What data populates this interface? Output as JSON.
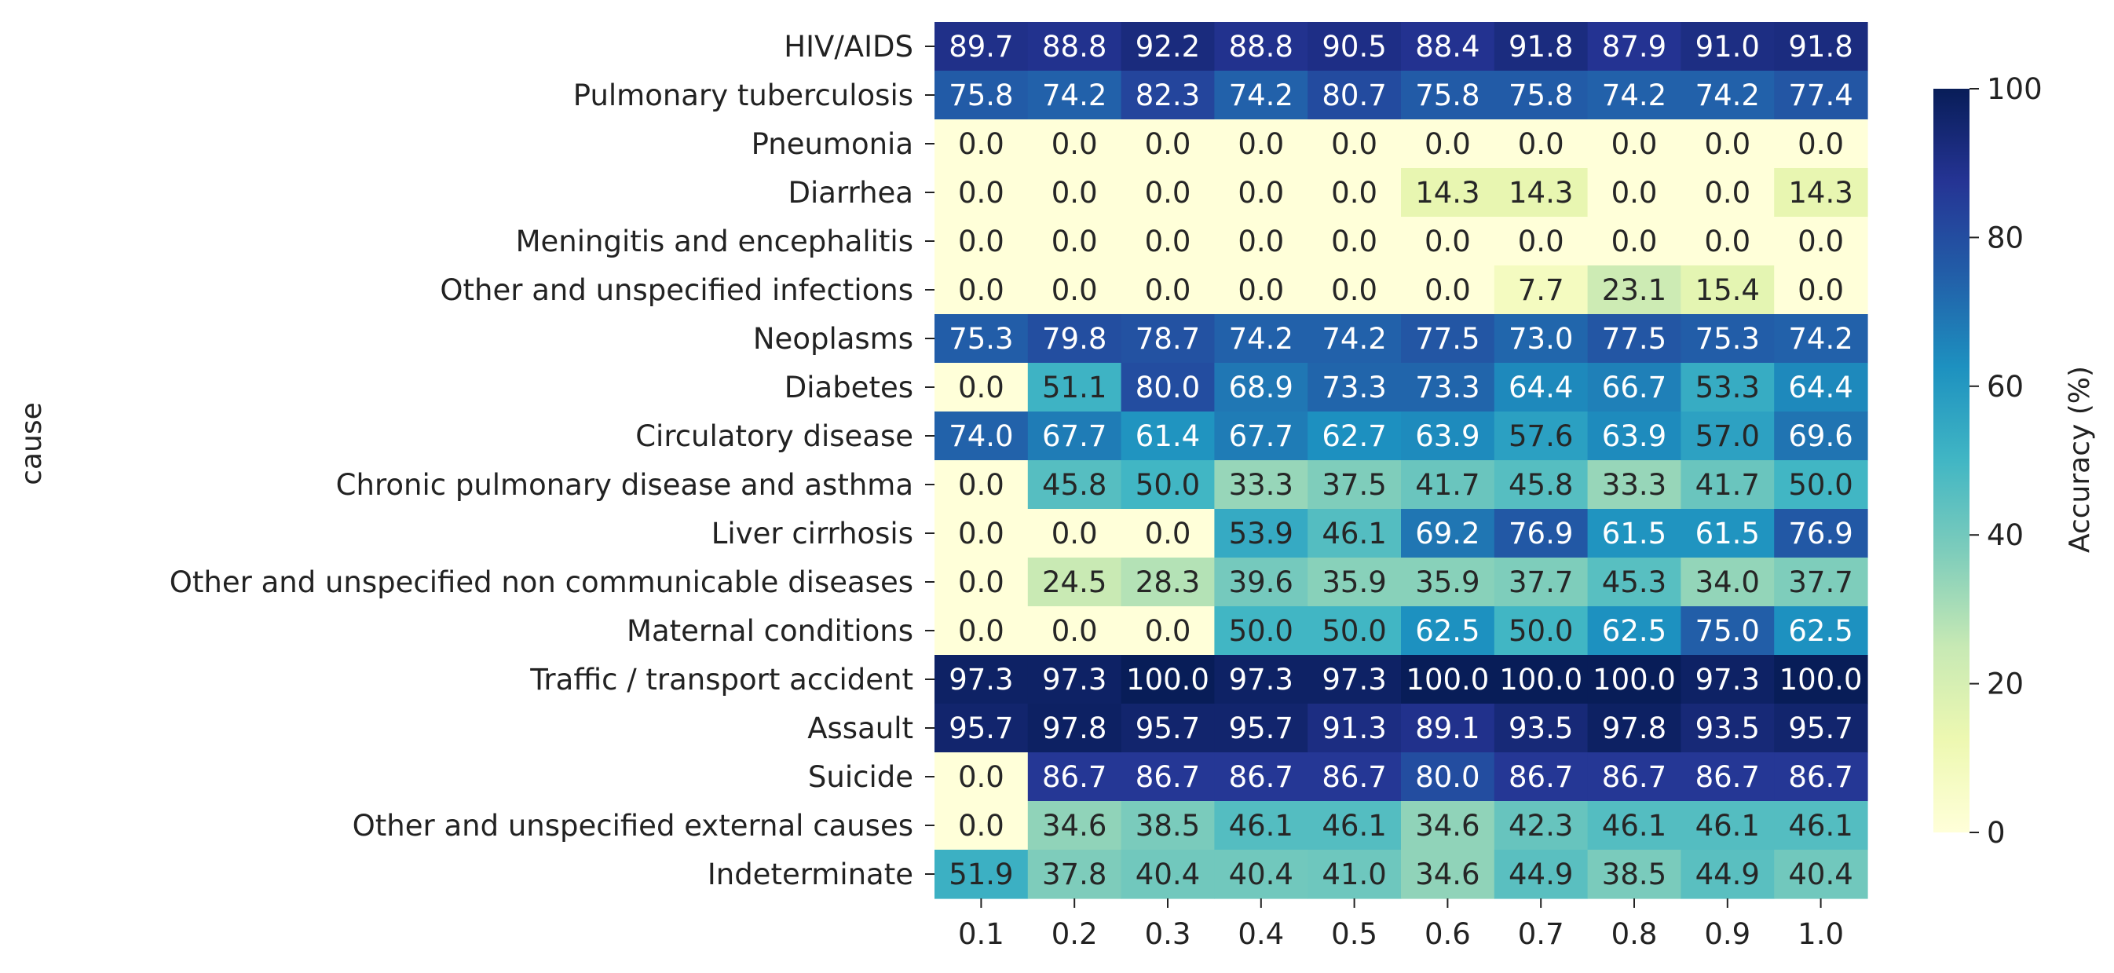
{
  "chart_data": {
    "type": "heatmap",
    "title": "",
    "xlabel": "",
    "ylabel": "cause",
    "x_categories": [
      "0.1",
      "0.2",
      "0.3",
      "0.4",
      "0.5",
      "0.6",
      "0.7",
      "0.8",
      "0.9",
      "1.0"
    ],
    "y_categories": [
      "HIV/AIDS",
      "Pulmonary tuberculosis",
      "Pneumonia",
      "Diarrhea",
      "Meningitis and encephalitis",
      "Other and unspecified infections",
      "Neoplasms",
      "Diabetes",
      "Circulatory disease",
      "Chronic pulmonary disease and asthma",
      "Liver cirrhosis",
      "Other and unspecified non communicable diseases",
      "Maternal conditions",
      "Traffic / transport accident",
      "Assault",
      "Suicide",
      "Other and unspecified external causes",
      "Indeterminate"
    ],
    "values": [
      [
        89.7,
        88.8,
        92.2,
        88.8,
        90.5,
        88.4,
        91.8,
        87.9,
        91.0,
        91.8
      ],
      [
        75.8,
        74.2,
        82.3,
        74.2,
        80.7,
        75.8,
        75.8,
        74.2,
        74.2,
        77.4
      ],
      [
        0.0,
        0.0,
        0.0,
        0.0,
        0.0,
        0.0,
        0.0,
        0.0,
        0.0,
        0.0
      ],
      [
        0.0,
        0.0,
        0.0,
        0.0,
        0.0,
        14.3,
        14.3,
        0.0,
        0.0,
        14.3
      ],
      [
        0.0,
        0.0,
        0.0,
        0.0,
        0.0,
        0.0,
        0.0,
        0.0,
        0.0,
        0.0
      ],
      [
        0.0,
        0.0,
        0.0,
        0.0,
        0.0,
        0.0,
        7.7,
        23.1,
        15.4,
        0.0
      ],
      [
        75.3,
        79.8,
        78.7,
        74.2,
        74.2,
        77.5,
        73.0,
        77.5,
        75.3,
        74.2
      ],
      [
        0.0,
        51.1,
        80.0,
        68.9,
        73.3,
        73.3,
        64.4,
        66.7,
        53.3,
        64.4
      ],
      [
        74.0,
        67.7,
        61.4,
        67.7,
        62.7,
        63.9,
        57.6,
        63.9,
        57.0,
        69.6
      ],
      [
        0.0,
        45.8,
        50.0,
        33.3,
        37.5,
        41.7,
        45.8,
        33.3,
        41.7,
        50.0
      ],
      [
        0.0,
        0.0,
        0.0,
        53.9,
        46.1,
        69.2,
        76.9,
        61.5,
        61.5,
        76.9
      ],
      [
        0.0,
        24.5,
        28.3,
        39.6,
        35.9,
        35.9,
        37.7,
        45.3,
        34.0,
        37.7
      ],
      [
        0.0,
        0.0,
        0.0,
        50.0,
        50.0,
        62.5,
        50.0,
        62.5,
        75.0,
        62.5
      ],
      [
        97.3,
        97.3,
        100.0,
        97.3,
        97.3,
        100.0,
        100.0,
        100.0,
        97.3,
        100.0
      ],
      [
        95.7,
        97.8,
        95.7,
        95.7,
        91.3,
        89.1,
        93.5,
        97.8,
        93.5,
        95.7
      ],
      [
        0.0,
        86.7,
        86.7,
        86.7,
        86.7,
        80.0,
        86.7,
        86.7,
        86.7,
        86.7
      ],
      [
        0.0,
        34.6,
        38.5,
        46.1,
        46.1,
        34.6,
        42.3,
        46.1,
        46.1,
        46.1
      ],
      [
        51.9,
        37.8,
        40.4,
        40.4,
        41.0,
        34.6,
        44.9,
        38.5,
        44.9,
        40.4
      ]
    ],
    "value_format": "0.1f",
    "colormap": "YlGnBu",
    "colormap_stops": [
      "#ffffd9",
      "#edf8b1",
      "#c7e9b4",
      "#7fcdbb",
      "#41b6c4",
      "#1d91c0",
      "#225ea8",
      "#253494",
      "#081d58"
    ],
    "colorbar": {
      "label": "Accuracy (%)",
      "range": [
        0,
        100
      ],
      "ticks": [
        "0",
        "20",
        "40",
        "60",
        "80",
        "100"
      ]
    },
    "grid": false,
    "legend": "colorbar-right"
  }
}
